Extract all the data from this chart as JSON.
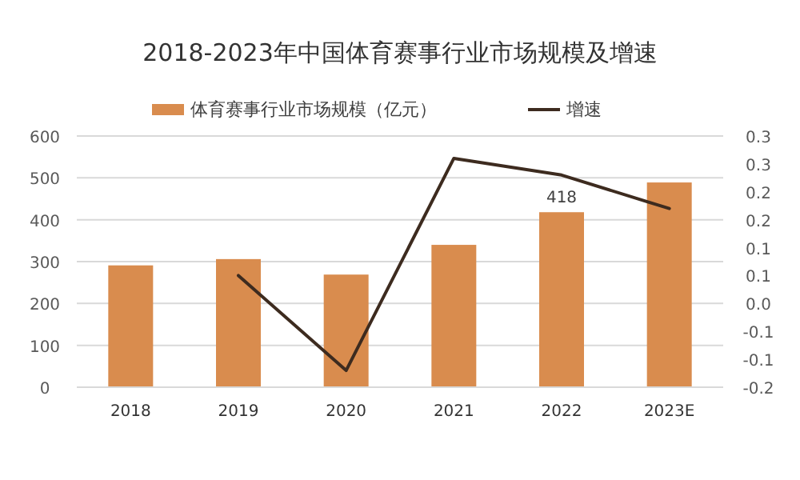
{
  "chart_data": {
    "type": "bar",
    "title": "2018-2023年中国体育赛事行业市场规模及增速",
    "categories": [
      "2018",
      "2019",
      "2020",
      "2021",
      "2022",
      "2023E"
    ],
    "series": [
      {
        "name": "体育赛事行业市场规模（亿元）",
        "color": "#d98c4e",
        "values": [
          291,
          306,
          269,
          340,
          418,
          489
        ],
        "value_labels": [
          null,
          null,
          null,
          null,
          "418",
          null
        ]
      },
      {
        "name": "增速",
        "type": "line",
        "axis": "y2",
        "color": "#3d2b1f",
        "values": [
          null,
          0.05,
          -0.12,
          0.26,
          0.23,
          0.17
        ]
      }
    ],
    "ylim": [
      0,
      600
    ],
    "yticks": [
      0,
      100,
      200,
      300,
      400,
      500,
      600
    ],
    "y2lim": [
      -0.15,
      0.3
    ],
    "y2ticks": [
      {
        "value": -0.15,
        "label": "-0.2"
      },
      {
        "value": -0.1,
        "label": "-0.1"
      },
      {
        "value": -0.05,
        "label": "-0.1"
      },
      {
        "value": 0,
        "label": "0.0"
      },
      {
        "value": 0.05,
        "label": "0.1"
      },
      {
        "value": 0.1,
        "label": "0.1"
      },
      {
        "value": 0.15,
        "label": "0.2"
      },
      {
        "value": 0.2,
        "label": "0.2"
      },
      {
        "value": 0.25,
        "label": "0.3"
      },
      {
        "value": 0.3,
        "label": "0.3"
      }
    ],
    "grid": "y",
    "legend": "top",
    "marker": "none",
    "line_style": "solid"
  }
}
